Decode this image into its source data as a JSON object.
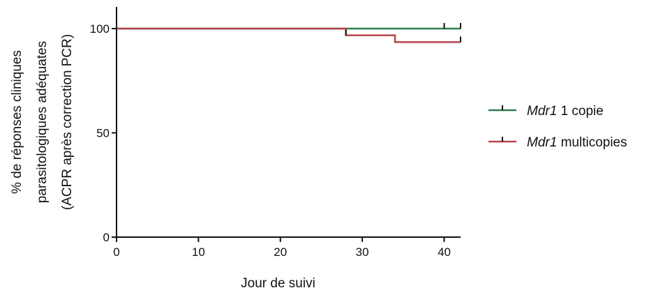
{
  "chart_data": {
    "type": "line",
    "step": true,
    "title": "",
    "xlabel": "Jour de suivi",
    "ylabel_lines": [
      "% de réponses cliniques",
      "parasitologiques adéquates",
      "(ACPR après correction PCR)"
    ],
    "xlim": [
      0,
      42
    ],
    "ylim": [
      0,
      110
    ],
    "xticks": [
      0,
      10,
      20,
      30,
      40
    ],
    "yticks": [
      0,
      50,
      100
    ],
    "grid": false,
    "legend_position": "right",
    "series": [
      {
        "name_italic": "Mdr1",
        "name_rest": " 1 copie",
        "color": "#2e7d4f",
        "points": [
          [
            0,
            100
          ],
          [
            42,
            100
          ]
        ],
        "censor_x": [
          40,
          42
        ]
      },
      {
        "name_italic": "Mdr1",
        "name_rest": " multicopies",
        "color": "#b8434b",
        "points": [
          [
            0,
            100
          ],
          [
            28,
            100
          ],
          [
            28,
            96.8
          ],
          [
            34,
            96.8
          ],
          [
            34,
            93.5
          ],
          [
            42,
            93.5
          ]
        ],
        "censor_x": [
          28,
          42
        ]
      }
    ]
  }
}
